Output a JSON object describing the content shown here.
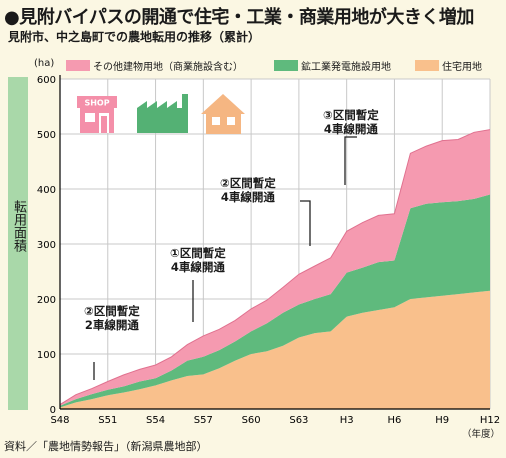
{
  "title": "●見附バイパスの開通で住宅・工業・商業用地が大きく増加",
  "subtitle": "見附市、中之島町での農地転用の推移（累計）",
  "source": "資料／「農地情勢報告」（新潟県農地部）",
  "shop_sign": "SHOP",
  "colors": {
    "other": "#f59ab0",
    "industrial": "#5fba7d",
    "residential": "#f9c08c",
    "ylabel_bg": "#a9d8a9",
    "background": "#fbf7e3"
  },
  "icons": [
    "shop-icon",
    "factory-icon",
    "house-icon"
  ],
  "annotations": [
    {
      "text1": "②区間暫定",
      "text2": "2車線開通",
      "x_year": 1973
    },
    {
      "text1": "①区間暫定",
      "text2": "4車線開通",
      "x_year": 1982
    },
    {
      "text1": "②区間暫定",
      "text2": "4車線開通",
      "x_year": 1986
    },
    {
      "text1": "③区間暫定",
      "text2": "4車線開通",
      "x_year": 1990
    }
  ],
  "chart_data": {
    "type": "area",
    "stacked": true,
    "title": "見附市、中之島町での農地転用の推移（累計）",
    "xlabel": "（年度）",
    "ylabel": "転用面積",
    "y_unit": "(ha)",
    "ylim": [
      0,
      600
    ],
    "yticks": [
      0,
      100,
      200,
      300,
      400,
      500,
      600
    ],
    "grid": true,
    "legend_position": "top",
    "x_range": [
      1973,
      2000
    ],
    "x_ticks": [
      {
        "year": 1973,
        "label": "S48"
      },
      {
        "year": 1976,
        "label": "S51"
      },
      {
        "year": 1979,
        "label": "S54"
      },
      {
        "year": 1982,
        "label": "S57"
      },
      {
        "year": 1985,
        "label": "S60"
      },
      {
        "year": 1988,
        "label": "S63"
      },
      {
        "year": 1991,
        "label": "H3"
      },
      {
        "year": 1994,
        "label": "H6"
      },
      {
        "year": 1997,
        "label": "H9"
      },
      {
        "year": 2000,
        "label": "H12"
      }
    ],
    "x": [
      1973,
      1974,
      1975,
      1976,
      1977,
      1978,
      1979,
      1980,
      1981,
      1982,
      1983,
      1984,
      1985,
      1986,
      1987,
      1988,
      1989,
      1990,
      1991,
      1992,
      1993,
      1994,
      1995,
      1996,
      1997,
      1998,
      1999,
      2000
    ],
    "series": [
      {
        "name": "住宅用地",
        "key": "residential",
        "values": [
          3,
          12,
          18,
          25,
          30,
          36,
          43,
          52,
          60,
          63,
          74,
          88,
          100,
          105,
          115,
          130,
          138,
          141,
          168,
          175,
          180,
          185,
          200,
          203,
          206,
          209,
          212,
          215
        ]
      },
      {
        "name": "鉱工業発電施設用地",
        "key": "industrial",
        "values": [
          3,
          6,
          9,
          10,
          11,
          14,
          13,
          18,
          28,
          32,
          33,
          35,
          41,
          51,
          60,
          60,
          62,
          68,
          80,
          82,
          87,
          85,
          165,
          170,
          170,
          169,
          170,
          175
        ]
      },
      {
        "name": "その他建物用地（商業施設含む）",
        "key": "other",
        "values": [
          2,
          8,
          10,
          15,
          21,
          22,
          24,
          25,
          29,
          38,
          38,
          38,
          41,
          42,
          46,
          55,
          60,
          66,
          75,
          82,
          85,
          85,
          100,
          105,
          112,
          112,
          121,
          118
        ]
      }
    ]
  }
}
